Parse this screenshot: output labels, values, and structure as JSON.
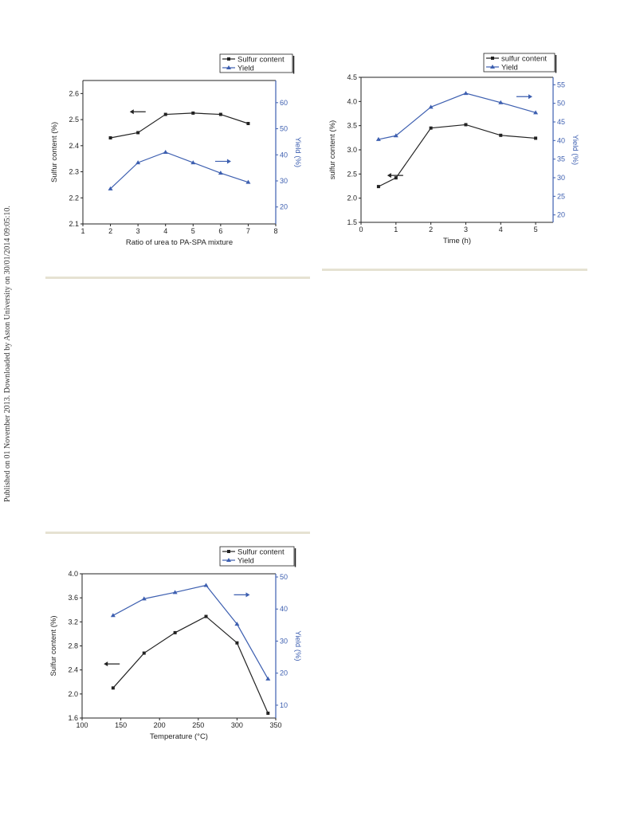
{
  "side_note": "Published on 01 November 2013. Downloaded by Aston University on 30/01/2014 09:05:10.",
  "chart_data": [
    {
      "type": "line",
      "id": "urea-ratio",
      "title": "",
      "xlabel": "Ratio of urea to PA-SPA mixture",
      "ylabel": "Sulfur content (%)",
      "y2label": "Yield (%)",
      "xlim": [
        1,
        8
      ],
      "ylim": [
        2.1,
        2.65
      ],
      "y2lim": [
        13.5,
        68.5
      ],
      "xticks": [
        "1",
        "2",
        "3",
        "4",
        "5",
        "6",
        "7",
        "8"
      ],
      "yticks": [
        "2.1",
        "2.2",
        "2.3",
        "2.4",
        "2.5",
        "2.6"
      ],
      "y2ticks": [
        "20",
        "30",
        "40",
        "50",
        "60"
      ],
      "legend_position": "top-right",
      "series": [
        {
          "name": "Sulfur content",
          "axis": "left",
          "color": "#222222",
          "marker": "square",
          "x": [
            2,
            3,
            4,
            5,
            6,
            7
          ],
          "values": [
            2.43,
            2.45,
            2.52,
            2.525,
            2.52,
            2.485
          ]
        },
        {
          "name": "Yield",
          "axis": "right",
          "color": "#3d5fb0",
          "marker": "triangle",
          "x": [
            2,
            3,
            4,
            5,
            6,
            7
          ],
          "values": [
            27,
            37,
            41,
            37,
            33,
            29.5
          ]
        }
      ],
      "arrows": [
        {
          "direction": "left",
          "at_x": 2.7,
          "at_y": 2.53,
          "color": "#222222"
        },
        {
          "direction": "right",
          "at_x": 5.8,
          "at_y": 2.34,
          "color": "#3d5fb0"
        }
      ]
    },
    {
      "type": "line",
      "id": "reaction-time",
      "title": "",
      "xlabel": "Time (h)",
      "ylabel": "sulfur content (%)",
      "y2label": "Yield (%)",
      "xlim": [
        0,
        5.5
      ],
      "ylim": [
        1.5,
        4.5
      ],
      "y2lim": [
        18,
        57
      ],
      "xticks": [
        "0",
        "1",
        "2",
        "3",
        "4",
        "5"
      ],
      "yticks": [
        "1.5",
        "2.0",
        "2.5",
        "3.0",
        "3.5",
        "4.0",
        "4.5"
      ],
      "y2ticks": [
        "20",
        "25",
        "30",
        "35",
        "40",
        "45",
        "50",
        "55"
      ],
      "legend_position": "top-right",
      "series": [
        {
          "name": "sulfur content",
          "axis": "left",
          "color": "#222222",
          "marker": "square",
          "x": [
            0.5,
            1,
            2,
            3,
            4,
            5
          ],
          "values": [
            2.24,
            2.42,
            3.45,
            3.52,
            3.3,
            3.24
          ]
        },
        {
          "name": "Yield",
          "axis": "right",
          "color": "#3d5fb0",
          "marker": "triangle",
          "x": [
            0.5,
            1,
            2,
            3,
            4,
            5
          ],
          "values": [
            40.3,
            41.3,
            49,
            52.7,
            50.2,
            47.5
          ]
        }
      ],
      "arrows": [
        {
          "direction": "left",
          "at_x": 0.75,
          "at_y": 2.47,
          "color": "#222222"
        },
        {
          "direction": "right",
          "at_x": 4.45,
          "at_y": 4.1,
          "color": "#3d5fb0"
        }
      ]
    },
    {
      "type": "line",
      "id": "temperature",
      "title": "",
      "xlabel": "Temperature (°C)",
      "ylabel": "Sulfur content (%)",
      "y2label": "Yield (%)",
      "xlim": [
        100,
        350
      ],
      "ylim": [
        1.6,
        4.0
      ],
      "y2lim": [
        6,
        51
      ],
      "xticks": [
        "100",
        "150",
        "200",
        "250",
        "300",
        "350"
      ],
      "yticks": [
        "1.6",
        "2.0",
        "2.4",
        "2.8",
        "3.2",
        "3.6",
        "4.0"
      ],
      "y2ticks": [
        "10",
        "20",
        "30",
        "40",
        "50"
      ],
      "legend_position": "top-right",
      "series": [
        {
          "name": "Sulfur content",
          "axis": "left",
          "color": "#222222",
          "marker": "square",
          "x": [
            140,
            180,
            220,
            260,
            300,
            340
          ],
          "values": [
            2.1,
            2.68,
            3.02,
            3.29,
            2.85,
            1.68
          ]
        },
        {
          "name": "Yield",
          "axis": "right",
          "color": "#3d5fb0",
          "marker": "triangle",
          "x": [
            140,
            180,
            220,
            260,
            300,
            340
          ],
          "values": [
            38,
            43.2,
            45.2,
            47.4,
            35.3,
            18.2
          ]
        }
      ],
      "arrows": [
        {
          "direction": "left",
          "at_x": 128,
          "at_y": 2.5,
          "color": "#222222"
        },
        {
          "direction": "right",
          "at_x": 296,
          "at_y": 3.65,
          "color": "#3d5fb0"
        }
      ]
    }
  ]
}
